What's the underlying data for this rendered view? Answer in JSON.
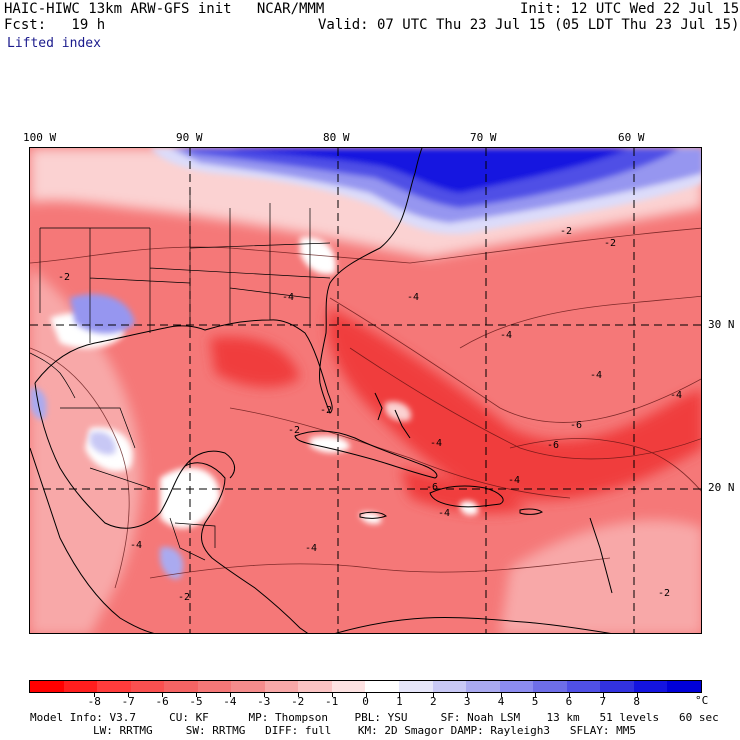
{
  "header": {
    "model_line": "HAIC-HIWC 13km ARW-GFS init   NCAR/MMM",
    "init_line": "Init: 12 UTC Wed 22 Jul 15",
    "fcst_line": "Fcst:   19 h",
    "valid_line": "Valid: 07 UTC Thu 23 Jul 15 (05 LDT Thu 23 Jul 15)",
    "field_name": "Lifted index"
  },
  "map": {
    "lon_labels": [
      "100 W",
      "90 W",
      "80 W",
      "70 W",
      "60 W"
    ],
    "lat_labels": [
      "30 N",
      "20 N"
    ],
    "contour_labels": [
      "-2",
      "-2",
      "-4",
      "-4",
      "-2",
      "-4",
      "-2",
      "-4",
      "-6",
      "-6",
      "-4",
      "-2",
      "-4",
      "-4",
      "-2",
      "-4",
      "-2",
      "-4",
      "-6",
      "-4"
    ],
    "colors": {
      "strong_red": "#f03c3c",
      "medium_red": "#f57878",
      "light_red": "#f8a8a8",
      "pale_red": "#fbd2d2",
      "white": "#ffffff",
      "pale_blue": "#dcdcfa",
      "light_blue": "#9696f0",
      "medium_blue": "#5050e6",
      "strong_blue": "#1414e0"
    }
  },
  "colorbar": {
    "labels": [
      "-8",
      "-7",
      "-6",
      "-5",
      "-4",
      "-3",
      "-2",
      "-1",
      "0",
      "1",
      "2",
      "3",
      "4",
      "5",
      "6",
      "7",
      "8"
    ],
    "unit": "°C",
    "colors": [
      "#ff0000",
      "#ff1e1e",
      "#ff3c3c",
      "#fa5050",
      "#f56464",
      "#f57878",
      "#f58c8c",
      "#f8a8a8",
      "#fbc4c4",
      "#fde2e2",
      "#ffffff",
      "#e6e6fa",
      "#c8c8f5",
      "#aaaaf0",
      "#8c8cf0",
      "#6e6ee8",
      "#5050e6",
      "#3232e0",
      "#1414e0",
      "#0000d8"
    ]
  },
  "footer": {
    "line1": "Model Info: V3.7     CU: KF      MP: Thompson    PBL: YSU     SF: Noah LSM    13 km   51 levels   60 sec",
    "line2": "LW: RRTMG     SW: RRTMG   DIFF: full    KM: 2D Smagor DAMP: Rayleigh3   SFLAY: MM5"
  }
}
